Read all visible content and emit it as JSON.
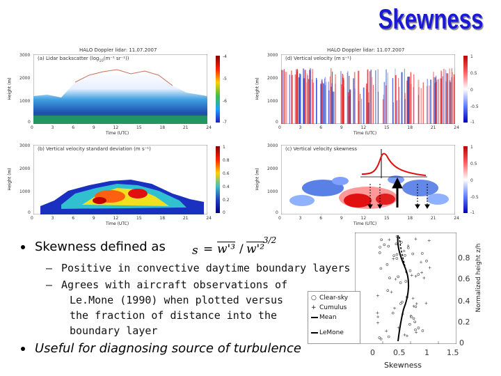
{
  "slide": {
    "title": "Skewness",
    "bullets": {
      "b1": "Skewness defined as",
      "sub1": "Positive in convective daytime boundary layers",
      "sub2_l1": "Agrees with aircraft observations of",
      "sub2_l2": "Le.Mone (1990) when plotted versus",
      "sub2_l3": "the fraction of distance into the",
      "sub2_l4": "boundary layer",
      "b2": "Useful for diagnosing source of turbulence"
    },
    "formula": {
      "s": "s",
      "eq": "=",
      "num": "w'³",
      "den": "w'²",
      "exp": "3/2"
    }
  },
  "panels": {
    "header": "HALO Doppler lidar: 11.07.2007",
    "a": {
      "label": "(a) Lidar backscatter (log",
      "label_sub": "10",
      "label_end": "(m⁻¹ sr⁻¹))",
      "cb_ticks": [
        "-4",
        "-5",
        "-6",
        "-7"
      ]
    },
    "d": {
      "label": "(d) Vertical velocity (m s⁻¹)",
      "cb_ticks": [
        "1",
        "0.5",
        "0",
        "-0.5",
        "-1"
      ]
    },
    "b": {
      "label": "(b) Vertical velocity standard deviation (m s⁻¹)",
      "cb_ticks": [
        "1",
        "0.8",
        "0.6",
        "0.4",
        "0.2",
        "0"
      ]
    },
    "c": {
      "label": "(c) Vertical velocity skewness",
      "cb_ticks": [
        "1",
        "0.5",
        "0",
        "-0.5",
        "-1"
      ]
    },
    "y_label": "Height (m)",
    "x_label": "Time (UTC)",
    "y_ticks": [
      "3000",
      "2000",
      "1000",
      "0"
    ],
    "x_ticks": [
      "0",
      "3",
      "6",
      "9",
      "12",
      "15",
      "18",
      "21",
      "24"
    ]
  },
  "profile": {
    "legend": [
      "Clear-sky",
      "Cumulus",
      "Mean",
      "LeMone"
    ],
    "x_label": "Skewness",
    "y_label": "Normalized height z/h",
    "x_ticks": [
      "0",
      "0.5",
      "1",
      "1.5"
    ],
    "y_ticks": [
      "0.8",
      "0.6",
      "0.4",
      "0.2",
      "0"
    ]
  },
  "colors": {
    "title": "#1a1ad6",
    "accent_red": "#e01010"
  }
}
